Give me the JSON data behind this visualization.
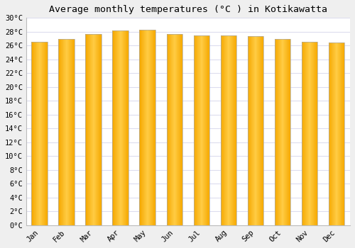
{
  "title": "Average monthly temperatures (°C ) in Kotikawatta",
  "months": [
    "Jan",
    "Feb",
    "Mar",
    "Apr",
    "May",
    "Jun",
    "Jul",
    "Aug",
    "Sep",
    "Oct",
    "Nov",
    "Dec"
  ],
  "values": [
    26.5,
    27.0,
    27.7,
    28.2,
    28.3,
    27.7,
    27.5,
    27.5,
    27.4,
    27.0,
    26.5,
    26.4
  ],
  "bar_color_center": "#FFCC44",
  "bar_color_edge": "#F5A800",
  "bar_outline_color": "#AAAAAA",
  "ylim": [
    0,
    30
  ],
  "ytick_step": 2,
  "plot_bg_color": "#FFFFFF",
  "fig_bg_color": "#EFEFEF",
  "grid_color": "#DDDDEE",
  "title_fontsize": 9.5,
  "tick_fontsize": 7.5,
  "bar_width": 0.6
}
